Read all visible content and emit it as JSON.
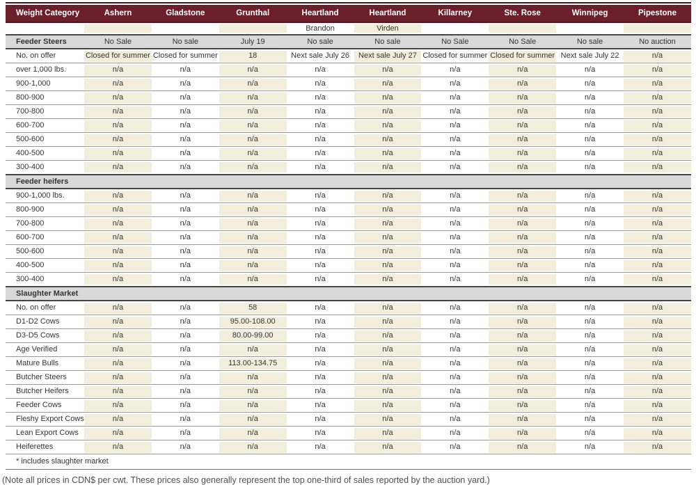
{
  "colors": {
    "header_bg": "#6B1F2B",
    "header_rule": "#4C1119",
    "cream": "#F3EEDB",
    "section_bg": "#D9D9D9",
    "section_border": "#454545",
    "row_border": "#999999",
    "table_bottom_border": "#6F6F6F",
    "text": "#333333",
    "header_text": "#FFFFFF",
    "note_text": "#4F4F4F"
  },
  "chart_data": {
    "type": "table",
    "title": "Weight Category auction market prices",
    "columns": [
      {
        "label": "Weight Category",
        "sub": ""
      },
      {
        "label": "Ashern",
        "sub": ""
      },
      {
        "label": "Gladstone",
        "sub": ""
      },
      {
        "label": "Grunthal",
        "sub": ""
      },
      {
        "label": "Heartland",
        "sub": "Brandon"
      },
      {
        "label": "Heartland",
        "sub": "Virden"
      },
      {
        "label": "Killarney",
        "sub": ""
      },
      {
        "label": "Ste. Rose",
        "sub": ""
      },
      {
        "label": "Winnipeg",
        "sub": ""
      },
      {
        "label": "Pipestone",
        "sub": ""
      }
    ],
    "rows": [
      {
        "type": "section",
        "label": "Feeder Steers",
        "cells": [
          "No Sale",
          "No sale",
          "July 19",
          "No sale",
          "No sale",
          "No Sale",
          "No Sale",
          "No sale",
          "No auction"
        ]
      },
      {
        "type": "data",
        "label": "No. on offer",
        "cells": [
          "Closed for summer",
          "Closed for summer",
          "18",
          "Next sale July 26",
          "Next sale July 27",
          "Closed for summer",
          "Closed for summer",
          "Next sale July 22",
          "n/a"
        ]
      },
      {
        "type": "data",
        "label": "over 1,000 lbs.",
        "cells": [
          "n/a",
          "n/a",
          "n/a",
          "n/a",
          "n/a",
          "n/a",
          "n/a",
          "n/a",
          "n/a"
        ]
      },
      {
        "type": "data",
        "label": "900-1,000",
        "cells": [
          "n/a",
          "n/a",
          "n/a",
          "n/a",
          "n/a",
          "n/a",
          "n/a",
          "n/a",
          "n/a"
        ]
      },
      {
        "type": "data",
        "label": "800-900",
        "cells": [
          "n/a",
          "n/a",
          "n/a",
          "n/a",
          "n/a",
          "n/a",
          "n/a",
          "n/a",
          "n/a"
        ]
      },
      {
        "type": "data",
        "label": "700-800",
        "cells": [
          "n/a",
          "n/a",
          "n/a",
          "n/a",
          "n/a",
          "n/a",
          "n/a",
          "n/a",
          "n/a"
        ]
      },
      {
        "type": "data",
        "label": "600-700",
        "cells": [
          "n/a",
          "n/a",
          "n/a",
          "n/a",
          "n/a",
          "n/a",
          "n/a",
          "n/a",
          "n/a"
        ]
      },
      {
        "type": "data",
        "label": "500-600",
        "cells": [
          "n/a",
          "n/a",
          "n/a",
          "n/a",
          "n/a",
          "n/a",
          "n/a",
          "n/a",
          "n/a"
        ]
      },
      {
        "type": "data",
        "label": "400-500",
        "cells": [
          "n/a",
          "n/a",
          "n/a",
          "n/a",
          "n/a",
          "n/a",
          "n/a",
          "n/a",
          "n/a"
        ]
      },
      {
        "type": "data",
        "label": "300-400",
        "cells": [
          "n/a",
          "n/a",
          "n/a",
          "n/a",
          "n/a",
          "n/a",
          "n/a",
          "n/a",
          "n/a"
        ]
      },
      {
        "type": "section",
        "label": "Feeder heifers",
        "cells": [
          "",
          "",
          "",
          "",
          "",
          "",
          "",
          "",
          ""
        ]
      },
      {
        "type": "data",
        "label": "900-1,000 lbs.",
        "cells": [
          "n/a",
          "n/a",
          "n/a",
          "n/a",
          "n/a",
          "n/a",
          "n/a",
          "n/a",
          "n/a"
        ]
      },
      {
        "type": "data",
        "label": "800-900",
        "cells": [
          "n/a",
          "n/a",
          "n/a",
          "n/a",
          "n/a",
          "n/a",
          "n/a",
          "n/a",
          "n/a"
        ]
      },
      {
        "type": "data",
        "label": "700-800",
        "cells": [
          "n/a",
          "n/a",
          "n/a",
          "n/a",
          "n/a",
          "n/a",
          "n/a",
          "n/a",
          "n/a"
        ]
      },
      {
        "type": "data",
        "label": "600-700",
        "cells": [
          "n/a",
          "n/a",
          "n/a",
          "n/a",
          "n/a",
          "n/a",
          "n/a",
          "n/a",
          "n/a"
        ]
      },
      {
        "type": "data",
        "label": "500-600",
        "cells": [
          "n/a",
          "n/a",
          "n/a",
          "n/a",
          "n/a",
          "n/a",
          "n/a",
          "n/a",
          "n/a"
        ]
      },
      {
        "type": "data",
        "label": "400-500",
        "cells": [
          "n/a",
          "n/a",
          "n/a",
          "n/a",
          "n/a",
          "n/a",
          "n/a",
          "n/a",
          "n/a"
        ]
      },
      {
        "type": "data",
        "label": "300-400",
        "cells": [
          "n/a",
          "n/a",
          "n/a",
          "n/a",
          "n/a",
          "n/a",
          "n/a",
          "n/a",
          "n/a"
        ]
      },
      {
        "type": "section",
        "label": "Slaughter Market",
        "cells": [
          "",
          "",
          "",
          "",
          "",
          "",
          "",
          "",
          ""
        ]
      },
      {
        "type": "data",
        "label": "No. on offer",
        "cells": [
          "n/a",
          "n/a",
          "58",
          "n/a",
          "n/a",
          "n/a",
          "n/a",
          "n/a",
          "n/a"
        ]
      },
      {
        "type": "data",
        "label": "D1-D2 Cows",
        "cells": [
          "n/a",
          "n/a",
          "95.00-108.00",
          "n/a",
          "n/a",
          "n/a",
          "n/a",
          "n/a",
          "n/a"
        ]
      },
      {
        "type": "data",
        "label": "D3-D5 Cows",
        "cells": [
          "n/a",
          "n/a",
          "80.00-99.00",
          "n/a",
          "n/a",
          "n/a",
          "n/a",
          "n/a",
          "n/a"
        ]
      },
      {
        "type": "data",
        "label": "Age Verified",
        "cells": [
          "n/a",
          "n/a",
          "n/a",
          "n/a",
          "n/a",
          "n/a",
          "n/a",
          "n/a",
          "n/a"
        ]
      },
      {
        "type": "data",
        "label": "Mature Bulls",
        "cells": [
          "n/a",
          "n/a",
          "113.00-134.75",
          "n/a",
          "n/a",
          "n/a",
          "n/a",
          "n/a",
          "n/a"
        ]
      },
      {
        "type": "data",
        "label": "Butcher Steers",
        "cells": [
          "n/a",
          "n/a",
          "n/a",
          "n/a",
          "n/a",
          "n/a",
          "n/a",
          "n/a",
          "n/a"
        ]
      },
      {
        "type": "data",
        "label": "Butcher Heifers",
        "cells": [
          "n/a",
          "n/a",
          "n/a",
          "n/a",
          "n/a",
          "n/a",
          "n/a",
          "n/a",
          "n/a"
        ]
      },
      {
        "type": "data",
        "label": "Feeder Cows",
        "cells": [
          "n/a",
          "n/a",
          "n/a",
          "n/a",
          "n/a",
          "n/a",
          "n/a",
          "n/a",
          "n/a"
        ]
      },
      {
        "type": "data",
        "label": "Fleshy Export Cows",
        "cells": [
          "n/a",
          "n/a",
          "n/a",
          "n/a",
          "n/a",
          "n/a",
          "n/a",
          "n/a",
          "n/a"
        ]
      },
      {
        "type": "data",
        "label": "Lean Export Cows",
        "cells": [
          "n/a",
          "n/a",
          "n/a",
          "n/a",
          "n/a",
          "n/a",
          "n/a",
          "n/a",
          "n/a"
        ]
      },
      {
        "type": "data",
        "label": "Heiferettes",
        "cells": [
          "n/a",
          "n/a",
          "n/a",
          "n/a",
          "n/a",
          "n/a",
          "n/a",
          "n/a",
          "n/a"
        ]
      },
      {
        "type": "footnote",
        "label": "* includes slaughter market",
        "cells": []
      }
    ],
    "note": "(Note all prices in CDN$ per cwt. These prices also generally represent the top one-third of sales reported by the auction yard.)"
  }
}
